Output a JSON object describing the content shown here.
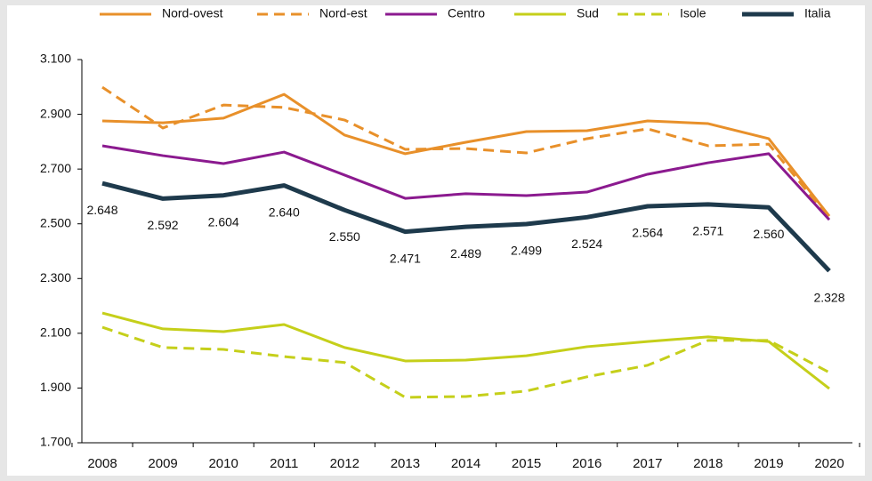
{
  "chart_data": {
    "type": "line",
    "categories": [
      "2008",
      "2009",
      "2010",
      "2011",
      "2012",
      "2013",
      "2014",
      "2015",
      "2016",
      "2017",
      "2018",
      "2019",
      "2020"
    ],
    "series": [
      {
        "name": "Nord-ovest",
        "color": "#e8902a",
        "style": "solid",
        "values": [
          2876,
          2869,
          2886,
          2973,
          2824,
          2756,
          2798,
          2837,
          2840,
          2876,
          2866,
          2811,
          2528
        ]
      },
      {
        "name": "Nord-est",
        "color": "#e8902a",
        "style": "dashed",
        "values": [
          2999,
          2850,
          2934,
          2925,
          2879,
          2772,
          2775,
          2759,
          2811,
          2847,
          2785,
          2791,
          2520
        ]
      },
      {
        "name": "Centro",
        "color": "#8b1a8f",
        "style": "solid",
        "values": [
          2785,
          2749,
          2720,
          2762,
          2678,
          2593,
          2610,
          2603,
          2616,
          2681,
          2723,
          2756,
          2515
        ]
      },
      {
        "name": "Sud",
        "color": "#c5cf1a",
        "style": "solid",
        "values": [
          2174,
          2116,
          2106,
          2132,
          2048,
          1999,
          2002,
          2018,
          2051,
          2070,
          2087,
          2070,
          1898
        ]
      },
      {
        "name": "Isole",
        "color": "#c5cf1a",
        "style": "dashed",
        "values": [
          2122,
          2048,
          2041,
          2015,
          1993,
          1866,
          1869,
          1889,
          1941,
          1983,
          2074,
          2074,
          1957
        ]
      },
      {
        "name": "Italia",
        "color": "#1e3a4c",
        "style": "solid",
        "bold": true,
        "values": [
          2648,
          2592,
          2604,
          2640,
          2550,
          2471,
          2489,
          2499,
          2524,
          2564,
          2571,
          2560,
          2328
        ],
        "value_labels": [
          "2.648",
          "2.592",
          "2.604",
          "2.640",
          "2.550",
          "2.471",
          "2.489",
          "2.499",
          "2.524",
          "2.564",
          "2.571",
          "2.560",
          "2.328"
        ]
      }
    ],
    "ylim": [
      1700,
      3100
    ],
    "yticks": [
      {
        "value": 1700,
        "label": "1.700"
      },
      {
        "value": 1900,
        "label": "1.900"
      },
      {
        "value": 2100,
        "label": "2.100"
      },
      {
        "value": 2300,
        "label": "2.300"
      },
      {
        "value": 2500,
        "label": "2.500"
      },
      {
        "value": 2700,
        "label": "2.700"
      },
      {
        "value": 2900,
        "label": "2.900"
      },
      {
        "value": 3100,
        "label": "3.100"
      }
    ],
    "grid": false,
    "legend": "top"
  }
}
